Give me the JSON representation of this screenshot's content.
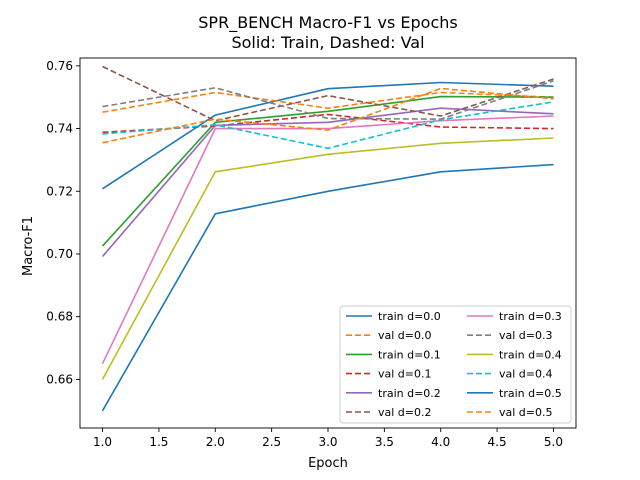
{
  "chart_data": {
    "type": "line",
    "title_line1": "SPR_BENCH Macro-F1 vs Epochs",
    "title_line2": "Solid: Train, Dashed: Val",
    "xlabel": "Epoch",
    "ylabel": "Macro-F1",
    "xlim": [
      0.8,
      5.2
    ],
    "ylim": [
      0.6445,
      0.7625
    ],
    "x": [
      1,
      2,
      3,
      4,
      5
    ],
    "x_ticks": [
      "1.0",
      "1.5",
      "2.0",
      "2.5",
      "3.0",
      "3.5",
      "4.0",
      "4.5",
      "5.0"
    ],
    "x_tick_values": [
      1.0,
      1.5,
      2.0,
      2.5,
      3.0,
      3.5,
      4.0,
      4.5,
      5.0
    ],
    "y_ticks": [
      "0.66",
      "0.68",
      "0.70",
      "0.72",
      "0.74",
      "0.76"
    ],
    "y_tick_values": [
      0.66,
      0.68,
      0.7,
      0.72,
      0.74,
      0.76
    ],
    "grid": false,
    "legend_position": "lower-right",
    "legend_columns": 2,
    "series": [
      {
        "name": "train d=0.0",
        "color": "#1f77b4",
        "style": "solid",
        "values": [
          0.7208,
          0.7443,
          0.7527,
          0.7547,
          0.7535
        ]
      },
      {
        "name": "val d=0.0",
        "color": "#ff7f0e",
        "style": "dashed",
        "values": [
          0.7452,
          0.7515,
          0.7465,
          0.7515,
          0.75
        ]
      },
      {
        "name": "train d=0.1",
        "color": "#2ca02c",
        "style": "solid",
        "values": [
          0.7025,
          0.742,
          0.7455,
          0.7502,
          0.75
        ]
      },
      {
        "name": "val d=0.1",
        "color": "#d62728",
        "style": "dashed",
        "values": [
          0.7388,
          0.7408,
          0.7445,
          0.7405,
          0.74
        ]
      },
      {
        "name": "train d=0.2",
        "color": "#9467bd",
        "style": "solid",
        "values": [
          0.6992,
          0.741,
          0.742,
          0.7465,
          0.7447
        ]
      },
      {
        "name": "val d=0.2",
        "color": "#8c564b",
        "style": "dashed",
        "values": [
          0.7598,
          0.7425,
          0.7505,
          0.744,
          0.7558
        ]
      },
      {
        "name": "train d=0.3",
        "color": "#e377c2",
        "style": "solid",
        "values": [
          0.665,
          0.74,
          0.74,
          0.7425,
          0.744
        ]
      },
      {
        "name": "val d=0.3",
        "color": "#7f7f7f",
        "style": "dashed",
        "values": [
          0.747,
          0.753,
          0.7432,
          0.743,
          0.7552
        ]
      },
      {
        "name": "train d=0.4",
        "color": "#bcbd22",
        "style": "solid",
        "values": [
          0.66,
          0.7262,
          0.7318,
          0.7353,
          0.737
        ]
      },
      {
        "name": "val d=0.4",
        "color": "#17becf",
        "style": "dashed",
        "values": [
          0.7383,
          0.7412,
          0.7337,
          0.7428,
          0.7485
        ]
      },
      {
        "name": "train d=0.5",
        "color": "#1f77b4",
        "style": "solid",
        "values": [
          0.65,
          0.7128,
          0.72,
          0.7262,
          0.7285
        ]
      },
      {
        "name": "val d=0.5",
        "color": "#ff7f0e",
        "style": "dashed",
        "values": [
          0.7355,
          0.743,
          0.7395,
          0.7528,
          0.7495
        ]
      }
    ]
  }
}
